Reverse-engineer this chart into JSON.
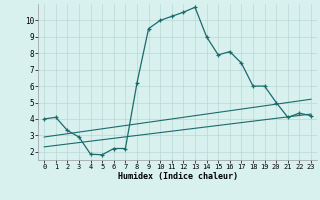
{
  "xlabel": "Humidex (Indice chaleur)",
  "background_color": "#d8f0ee",
  "grid_color": "#b8d8d5",
  "line_color": "#1a6b6b",
  "xlim": [
    -0.5,
    23.5
  ],
  "ylim": [
    1.5,
    11.0
  ],
  "yticks": [
    2,
    3,
    4,
    5,
    6,
    7,
    8,
    9,
    10
  ],
  "xticks": [
    0,
    1,
    2,
    3,
    4,
    5,
    6,
    7,
    8,
    9,
    10,
    11,
    12,
    13,
    14,
    15,
    16,
    17,
    18,
    19,
    20,
    21,
    22,
    23
  ],
  "line1_x": [
    0,
    1,
    2,
    3,
    4,
    5,
    6,
    7,
    8,
    9,
    10,
    11,
    12,
    13,
    14,
    15,
    16,
    17,
    18,
    19,
    20,
    21,
    22,
    23
  ],
  "line1_y": [
    4.0,
    4.1,
    3.3,
    2.9,
    1.85,
    1.82,
    2.2,
    2.2,
    6.2,
    9.5,
    10.0,
    10.25,
    10.5,
    10.8,
    9.0,
    7.9,
    8.1,
    7.4,
    6.0,
    6.0,
    5.0,
    4.1,
    4.35,
    4.2
  ],
  "line2_x": [
    0,
    23
  ],
  "line2_y": [
    2.9,
    5.2
  ],
  "line3_x": [
    0,
    23
  ],
  "line3_y": [
    2.3,
    4.3
  ]
}
